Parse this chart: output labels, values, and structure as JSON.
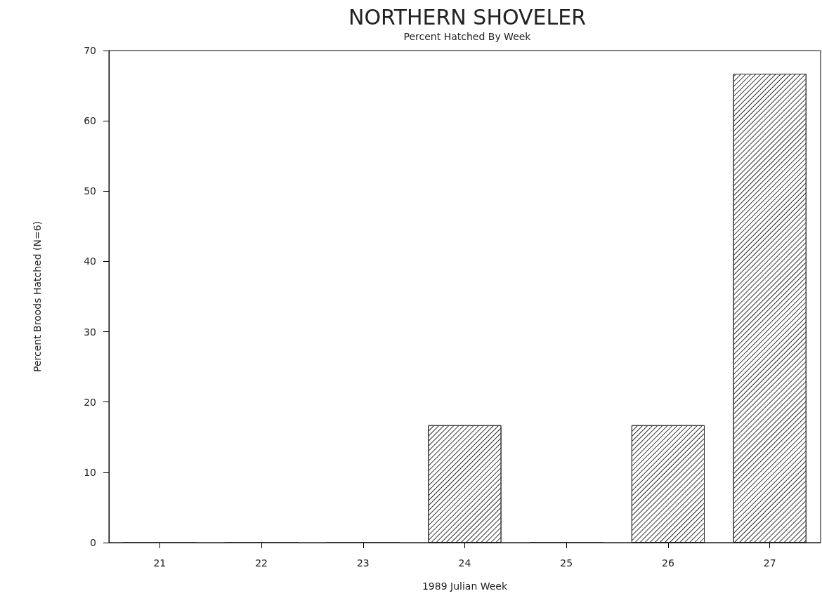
{
  "chart_data": {
    "type": "bar",
    "title": "NORTHERN SHOVELER",
    "subtitle": "Percent Hatched By Week",
    "xlabel": "1989 Julian Week",
    "ylabel": "Percent Broods Hatched (N=6)",
    "categories": [
      "21",
      "22",
      "23",
      "24",
      "25",
      "26",
      "27"
    ],
    "values": [
      0,
      0,
      0,
      16.7,
      0,
      16.7,
      66.7
    ],
    "color": "#333333",
    "ylim": [
      0,
      70
    ],
    "yticks": [
      0,
      10,
      20,
      30,
      40,
      50,
      60,
      70
    ],
    "grid": false
  }
}
